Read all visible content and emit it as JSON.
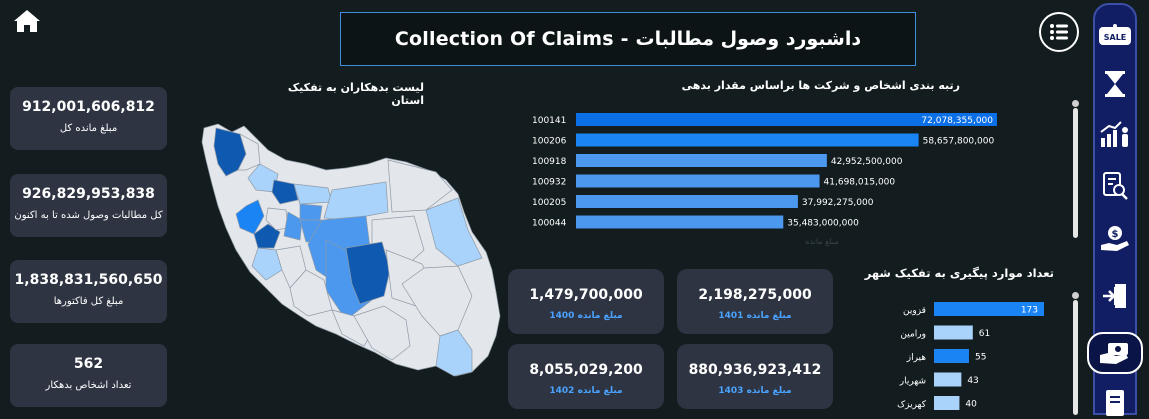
{
  "header": {
    "title": "Collection Of Claims - داشبورد وصول مطالبات"
  },
  "kpis": [
    {
      "value": "912,001,606,812",
      "label": "مبلغ مانده کل"
    },
    {
      "value": "926,829,953,838",
      "label": "کل مطالبات وصول شده تا به اکنون"
    },
    {
      "value": "1,838,831,560,650",
      "label": "مبلغ کل فاکتورها"
    },
    {
      "value": "562",
      "label": "تعداد اشخاص بدهکار"
    }
  ],
  "map": {
    "title": "لیست بدهکاران به تفکیک استان"
  },
  "ranking": {
    "title": "رتبه بندی اشخاص و شرکت ها براساس مقدار بدهی",
    "axis_label": "مبلغ مانده",
    "colors": [
      "#0b6fe8",
      "#1a84f5",
      "#4b98ee",
      "#4b98ee",
      "#4b98ee",
      "#4b98ee"
    ]
  },
  "year_cards": [
    {
      "value": "1,479,700,000",
      "label": "مبلغ مانده 1400"
    },
    {
      "value": "2,198,275,000",
      "label": "مبلغ مانده 1401"
    },
    {
      "value": "8,055,029,200",
      "label": "مبلغ مانده 1402"
    },
    {
      "value": "880,936,923,412",
      "label": "مبلغ مانده 1403"
    }
  ],
  "city_chart": {
    "title": "تعداد موارد پیگیری به تفکیک شهر",
    "colors": [
      "#1a84f5",
      "#a9d3fb",
      "#1a84f5",
      "#a9d3fb",
      "#a9d3fb"
    ]
  },
  "sidebar": {
    "items": [
      "sale-tag-icon",
      "hourglass-icon",
      "growth-people-icon",
      "document-search-icon",
      "money-hand-icon",
      "exit-door-icon",
      "cash-hand-icon",
      "invoice-icon"
    ],
    "active": "cash-hand-icon"
  },
  "chart_data": [
    {
      "type": "bar",
      "orientation": "horizontal",
      "title": "رتبه بندی اشخاص و شرکت ها براساس مقدار بدهی",
      "xlabel": "مبلغ مانده",
      "categories": [
        "100141",
        "100206",
        "100918",
        "100932",
        "100205",
        "100044"
      ],
      "values": [
        72078355000,
        58657800000,
        42952500000,
        41698015000,
        37992275000,
        35483000000
      ],
      "data_labels": [
        "72,078,355,000",
        "58,657,800,000",
        "42,952,500,000",
        "41,698,015,000",
        "37,992,275,000",
        "35,483,000,000"
      ],
      "xlim": [
        0,
        72078355000
      ],
      "grid": false
    },
    {
      "type": "bar",
      "orientation": "horizontal",
      "title": "تعداد موارد پیگیری به تفکیک شهر",
      "categories": [
        "قزوین",
        "ورامین",
        "هیراز",
        "شهریار",
        "کهریزک"
      ],
      "values": [
        173,
        61,
        55,
        43,
        40
      ],
      "xlim": [
        0,
        173
      ],
      "grid": false
    }
  ]
}
